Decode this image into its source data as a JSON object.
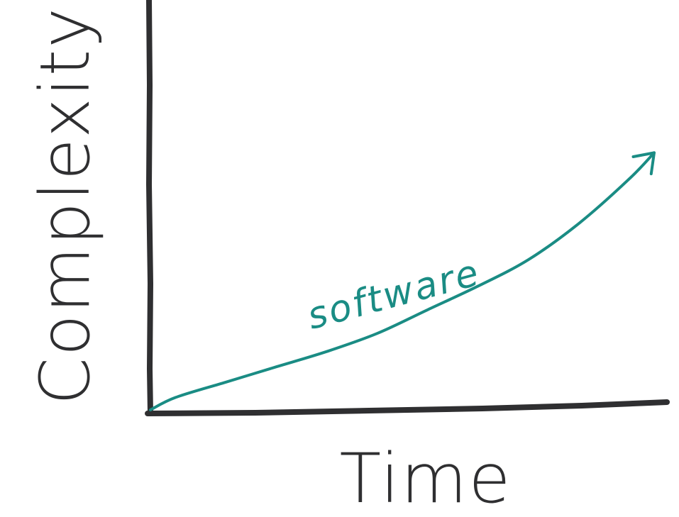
{
  "chart_data": {
    "type": "line",
    "title": "",
    "xlabel": "Time",
    "ylabel": "Complexity",
    "grid": false,
    "legend": "none",
    "xlim": [
      0,
      1
    ],
    "ylim": [
      0,
      1
    ],
    "series": [
      {
        "name": "software",
        "color": "#1a8c84",
        "x": [
          0.0,
          0.05,
          0.15,
          0.25,
          0.35,
          0.45,
          0.55,
          0.65,
          0.75,
          0.85,
          0.95,
          1.0
        ],
        "y": [
          0.0,
          0.045,
          0.1,
          0.155,
          0.21,
          0.275,
          0.36,
          0.445,
          0.54,
          0.67,
          0.83,
          0.925
        ],
        "arrowhead": true
      }
    ]
  },
  "colors": {
    "axis": "#2f2f31",
    "series": "#1a8c84",
    "background": "#ffffff"
  }
}
